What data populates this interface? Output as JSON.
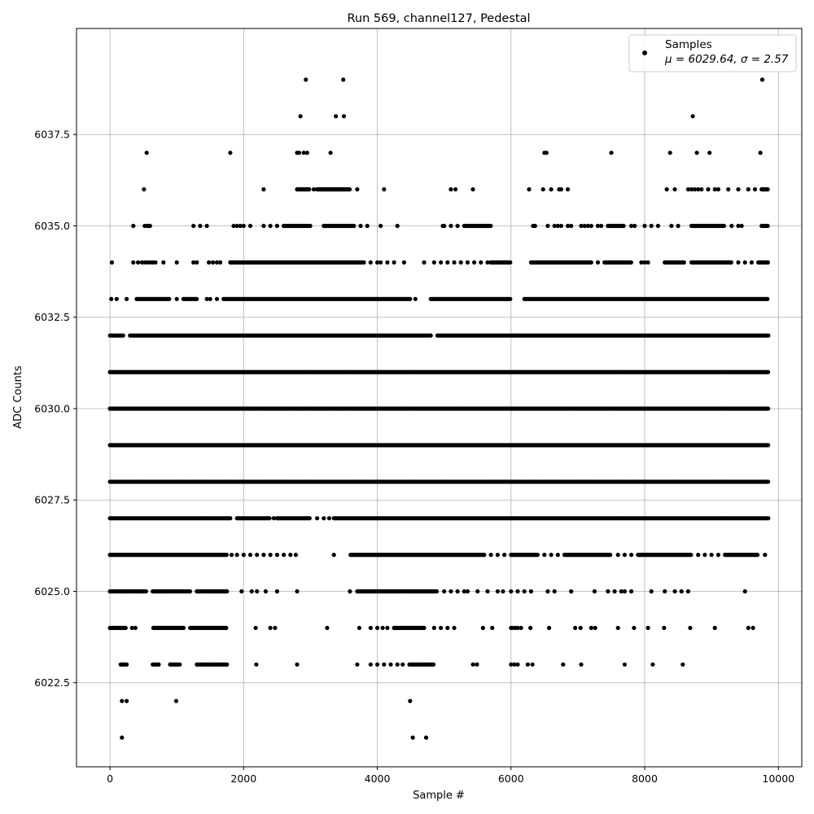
{
  "chart_data": {
    "type": "scatter",
    "title": "Run 569, channel127, Pedestal",
    "xlabel": "Sample #",
    "ylabel": "ADC Counts",
    "xlim": [
      -500,
      10350
    ],
    "ylim": [
      6020.2,
      6040.4
    ],
    "x_ticks": [
      0,
      2000,
      4000,
      6000,
      8000,
      10000
    ],
    "x_tick_labels": [
      "0",
      "2000",
      "4000",
      "6000",
      "8000",
      "10000"
    ],
    "y_ticks": [
      6022.5,
      6025.0,
      6027.5,
      6030.0,
      6032.5,
      6035.0,
      6037.5
    ],
    "y_tick_labels": [
      "6022.5",
      "6025.0",
      "6027.5",
      "6030.0",
      "6032.5",
      "6035.0",
      "6037.5"
    ],
    "grid": true,
    "legend_position": "top-right",
    "series": [
      {
        "name": "Samples",
        "color": "#000000",
        "marker": "circle",
        "stats_label": "μ = 6029.64, σ = 2.57",
        "levels": [
          {
            "y": 6021,
            "ranges": [],
            "points": [
              180,
              4530,
              4730
            ]
          },
          {
            "y": 6022,
            "ranges": [],
            "points": [
              180,
              250,
              990,
              4490
            ]
          },
          {
            "y": 6023,
            "ranges": [
              [
                160,
                250
              ],
              [
                640,
                740
              ],
              [
                900,
                1050
              ],
              [
                1300,
                1750
              ],
              [
                4480,
                4850
              ]
            ],
            "points": [
              2190,
              2800,
              3700,
              3900,
              4000,
              4100,
              4200,
              4300,
              4380,
              5430,
              5490,
              6000,
              6050,
              6100,
              6250,
              6320,
              6780,
              7050,
              7700,
              8120,
              8570
            ]
          },
          {
            "y": 6024,
            "ranges": [
              [
                0,
                240
              ],
              [
                650,
                1100
              ],
              [
                1200,
                1750
              ],
              [
                4250,
                4700
              ]
            ],
            "points": [
              330,
              380,
              2180,
              2400,
              2470,
              3250,
              3730,
              3900,
              4000,
              4080,
              4150,
              4850,
              4950,
              5050,
              5150,
              5580,
              5720,
              6000,
              6020,
              6060,
              6100,
              6150,
              6290,
              6570,
              6960,
              7040,
              7200,
              7260,
              7600,
              7840,
              8050,
              8290,
              8680,
              9050,
              9550,
              9620
            ]
          },
          {
            "y": 6025,
            "ranges": [
              [
                0,
                550
              ],
              [
                640,
                1200
              ],
              [
                1300,
                1750
              ],
              [
                3700,
                4900
              ]
            ],
            "points": [
              1970,
              2120,
              2200,
              2330,
              2500,
              2800,
              3590,
              5000,
              5100,
              5200,
              5300,
              5350,
              5500,
              5650,
              5800,
              5880,
              6000,
              6100,
              6200,
              6300,
              6550,
              6650,
              6900,
              7250,
              7450,
              7550,
              7650,
              7700,
              7800,
              8100,
              8300,
              8450,
              8550,
              8650,
              9500
            ]
          },
          {
            "y": 6026,
            "ranges": [
              [
                0,
                1750
              ],
              [
                3600,
                5600
              ],
              [
                6000,
                6400
              ],
              [
                6800,
                7500
              ],
              [
                7900,
                8700
              ],
              [
                9200,
                9700
              ]
            ],
            "points": [
              1820,
              1900,
              2000,
              2100,
              2200,
              2300,
              2400,
              2500,
              2600,
              2700,
              2780,
              3350,
              5700,
              5800,
              5900,
              6500,
              6600,
              6700,
              7600,
              7700,
              7800,
              8800,
              8900,
              9000,
              9100,
              9800
            ]
          },
          {
            "y": 6027,
            "ranges": [
              [
                0,
                1800
              ],
              [
                1900,
                2400
              ],
              [
                2500,
                3000
              ],
              [
                3350,
                9850
              ]
            ],
            "points": [
              2450,
              3100,
              3200,
              3280
            ]
          },
          {
            "y": 6028,
            "ranges": [
              [
                0,
                9850
              ]
            ],
            "points": []
          },
          {
            "y": 6029,
            "ranges": [
              [
                0,
                9850
              ]
            ],
            "points": []
          },
          {
            "y": 6030,
            "ranges": [
              [
                0,
                9850
              ]
            ],
            "points": []
          },
          {
            "y": 6031,
            "ranges": [
              [
                0,
                9850
              ]
            ],
            "points": []
          },
          {
            "y": 6032,
            "ranges": [
              [
                0,
                200
              ],
              [
                300,
                4800
              ],
              [
                4900,
                9850
              ]
            ],
            "points": []
          },
          {
            "y": 6033,
            "ranges": [
              [
                400,
                900
              ],
              [
                1100,
                1300
              ],
              [
                1700,
                4500
              ],
              [
                4800,
                6000
              ],
              [
                6200,
                9850
              ]
            ],
            "points": [
              20,
              100,
              250,
              1000,
              1450,
              1500,
              1600,
              4570
            ]
          },
          {
            "y": 6034,
            "ranges": [
              [
                1800,
                3800
              ],
              [
                5700,
                6000
              ],
              [
                6300,
                7200
              ],
              [
                7400,
                7800
              ],
              [
                8300,
                8600
              ],
              [
                8700,
                9300
              ],
              [
                9700,
                9850
              ]
            ],
            "points": [
              30,
              350,
              420,
              480,
              520,
              560,
              600,
              640,
              680,
              800,
              1000,
              1250,
              1300,
              1480,
              1540,
              1600,
              1650,
              3900,
              4000,
              4050,
              4150,
              4250,
              4400,
              4700,
              4850,
              4950,
              5050,
              5150,
              5250,
              5350,
              5450,
              5550,
              5650,
              7300,
              7950,
              8000,
              8050,
              9400,
              9500,
              9600
            ]
          },
          {
            "y": 6035,
            "ranges": [
              [
                2600,
                3000
              ],
              [
                3200,
                3650
              ],
              [
                5300,
                5700
              ],
              [
                7450,
                7700
              ],
              [
                8700,
                9200
              ],
              [
                9750,
                9850
              ]
            ],
            "points": [
              350,
              520,
              560,
              580,
              600,
              1250,
              1350,
              1450,
              1850,
              1900,
              1950,
              2000,
              2100,
              2300,
              2400,
              2500,
              3750,
              3850,
              4050,
              4300,
              4980,
              5000,
              5100,
              5200,
              6330,
              6360,
              6550,
              6650,
              6700,
              6750,
              6850,
              6900,
              7050,
              7100,
              7150,
              7200,
              7300,
              7350,
              7800,
              7850,
              8000,
              8100,
              8200,
              8400,
              8500,
              9300,
              9400,
              9450
            ]
          },
          {
            "y": 6036,
            "ranges": [
              [
                2800,
                2980
              ],
              [
                3100,
                3600
              ],
              [
                9750,
                9850
              ]
            ],
            "points": [
              510,
              2300,
              3050,
              3700,
              4100,
              5100,
              5170,
              5430,
              6270,
              6480,
              6600,
              6720,
              6750,
              6850,
              8330,
              8450,
              8650,
              8700,
              8750,
              8800,
              8850,
              8950,
              9050,
              9100,
              9250,
              9400,
              9550,
              9650
            ]
          },
          {
            "y": 6037,
            "ranges": [],
            "points": [
              550,
              1800,
              2800,
              2830,
              2900,
              2950,
              3300,
              6500,
              6530,
              7500,
              8380,
              8780,
              8970,
              9730
            ]
          },
          {
            "y": 6038,
            "ranges": [],
            "points": [
              2850,
              3380,
              3500,
              8720
            ]
          },
          {
            "y": 6039,
            "ranges": [],
            "points": [
              2930,
              3490,
              9760
            ]
          }
        ]
      }
    ]
  }
}
